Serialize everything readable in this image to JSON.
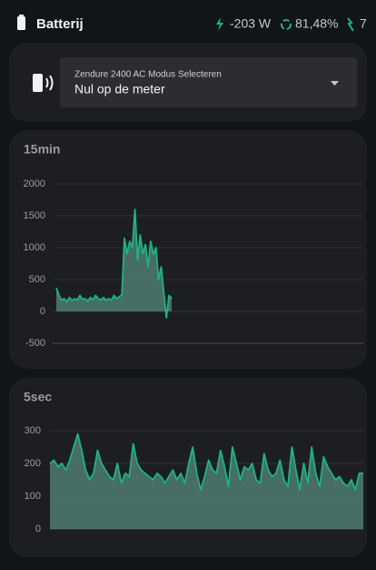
{
  "header": {
    "title": "Batterij",
    "power": "-203 W",
    "charge": "81,48%",
    "count": "7"
  },
  "select": {
    "label": "Zendure 2400 AC Modus Selecteren",
    "value": "Nul op de meter"
  },
  "chart_data": [
    {
      "type": "area",
      "title": "15min",
      "color": "#1db386",
      "fill": "#4d7d70",
      "grid": true,
      "ylim": [
        -500,
        2000
      ],
      "yticks": [
        -500,
        0,
        500,
        1000,
        1500,
        2000
      ],
      "values": [
        370,
        250,
        180,
        200,
        150,
        220,
        170,
        200,
        180,
        250,
        190,
        200,
        160,
        220,
        180,
        250,
        200,
        180,
        220,
        170,
        200,
        180,
        250,
        200,
        230,
        260,
        1150,
        900,
        1100,
        1000,
        1600,
        800,
        1200,
        900,
        1050,
        700,
        1100,
        900,
        1000,
        500,
        700,
        300,
        -100,
        250,
        200
      ]
    },
    {
      "type": "area",
      "title": "5sec",
      "color": "#1db386",
      "fill": "#4d7d70",
      "grid": true,
      "ylim": [
        0,
        300
      ],
      "yticks": [
        0,
        100,
        200,
        300
      ],
      "values": [
        200,
        210,
        190,
        200,
        180,
        210,
        250,
        290,
        240,
        180,
        150,
        170,
        240,
        200,
        180,
        160,
        150,
        200,
        140,
        170,
        160,
        260,
        200,
        180,
        170,
        160,
        150,
        170,
        160,
        140,
        160,
        180,
        150,
        170,
        140,
        200,
        250,
        170,
        120,
        160,
        210,
        180,
        170,
        240,
        190,
        130,
        250,
        200,
        150,
        190,
        180,
        200,
        150,
        140,
        230,
        180,
        160,
        170,
        210,
        150,
        130,
        250,
        180,
        120,
        200,
        140,
        250,
        170,
        130,
        220,
        190,
        170,
        150,
        160,
        140,
        130,
        150,
        120,
        170,
        170
      ]
    }
  ]
}
